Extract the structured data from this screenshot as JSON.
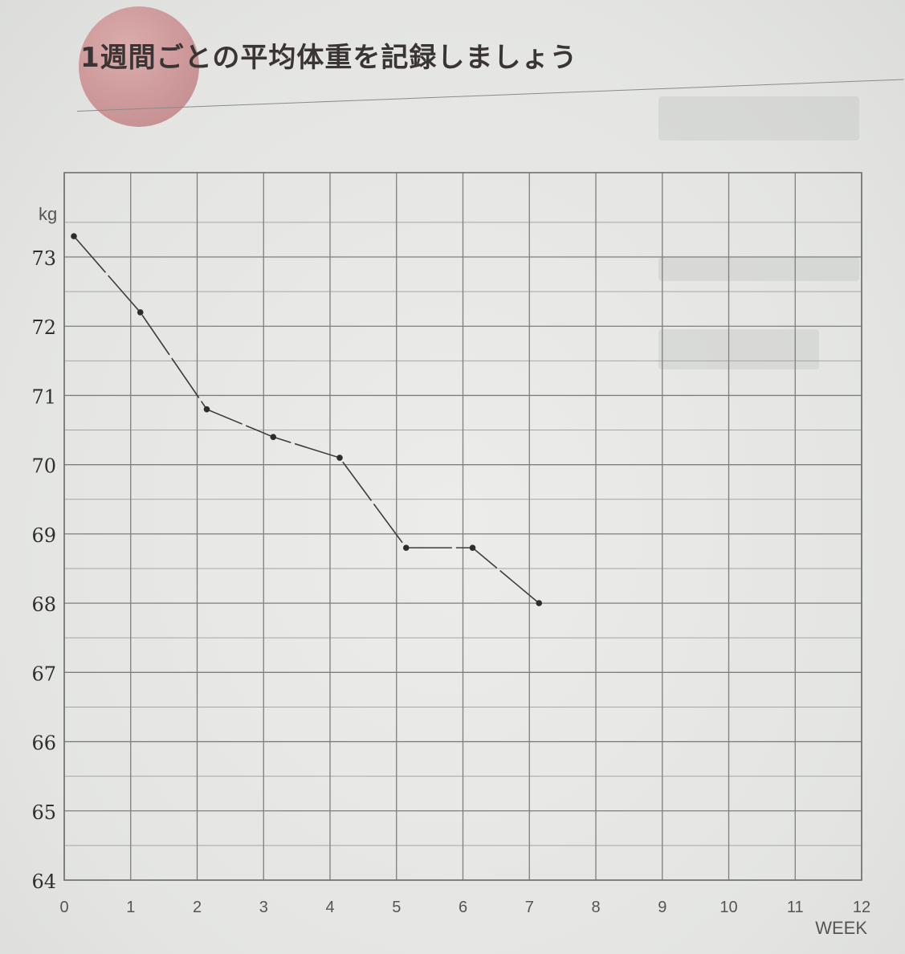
{
  "header": {
    "title": "1週間ごとの平均体重を記録しましょう"
  },
  "colors": {
    "accent_blob": "#c98b8d",
    "line": "#3d3d3d",
    "grid": "#a5a7a5"
  },
  "chart_data": {
    "type": "line",
    "title": "1週間ごとの平均体重を記録しましょう",
    "xlabel": "WEEK",
    "ylabel": "kg",
    "xlim": [
      0,
      12
    ],
    "ylim": [
      64,
      73.5
    ],
    "x_ticks": [
      "0",
      "1",
      "2",
      "3",
      "4",
      "5",
      "6",
      "7",
      "8",
      "9",
      "10",
      "11",
      "12"
    ],
    "y_ticks": [
      "64",
      "65",
      "66",
      "67",
      "68",
      "69",
      "70",
      "71",
      "72",
      "73"
    ],
    "grid": true,
    "minor_grid_step": 0.5,
    "series": [
      {
        "x": [
          0,
          1,
          2,
          3,
          4,
          5,
          6,
          7
        ],
        "values": [
          73.3,
          72.2,
          70.8,
          70.4,
          70.1,
          68.8,
          68.8,
          68.0
        ]
      }
    ]
  }
}
